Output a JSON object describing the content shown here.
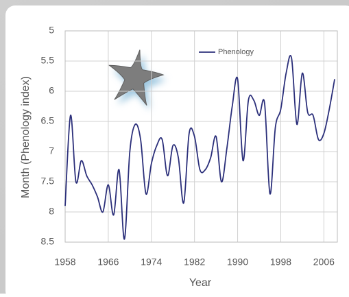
{
  "chart_data": {
    "type": "line",
    "y_label": "Month (Phenology index)",
    "x_label": "Year",
    "x": [
      1958,
      1959,
      1960,
      1961,
      1962,
      1963,
      1964,
      1965,
      1966,
      1967,
      1968,
      1969,
      1970,
      1971,
      1972,
      1973,
      1974,
      1975,
      1976,
      1977,
      1978,
      1979,
      1980,
      1981,
      1982,
      1983,
      1984,
      1985,
      1986,
      1987,
      1988,
      1989,
      1990,
      1991,
      1992,
      1993,
      1994,
      1995,
      1996,
      1997,
      1998,
      1999,
      2000,
      2001,
      2002,
      2003,
      2004,
      2005,
      2006,
      2007,
      2008
    ],
    "series": [
      {
        "name": "Phenology",
        "color": "#2b2f7a",
        "values": [
          7.9,
          6.4,
          7.5,
          7.15,
          7.4,
          7.55,
          7.75,
          8.0,
          7.55,
          8.05,
          7.3,
          8.45,
          7.0,
          6.55,
          6.8,
          7.7,
          7.2,
          6.9,
          6.8,
          7.4,
          6.9,
          7.1,
          7.85,
          6.7,
          6.75,
          7.3,
          7.3,
          7.1,
          6.75,
          7.5,
          6.95,
          6.25,
          5.8,
          7.15,
          6.15,
          6.15,
          6.4,
          6.2,
          7.7,
          6.6,
          6.3,
          5.7,
          5.45,
          6.55,
          5.7,
          6.35,
          6.4,
          6.8,
          6.7,
          6.3,
          5.8
        ]
      }
    ],
    "xlim": [
      1958,
      2008.5
    ],
    "xticks": [
      1958,
      1966,
      1974,
      1982,
      1990,
      1998,
      2006
    ],
    "ylim": [
      5,
      8.5
    ],
    "yticks": [
      5,
      5.5,
      6,
      6.5,
      7,
      7.5,
      8,
      8.5
    ],
    "y_inverted": true,
    "grid": true,
    "legend": "top-right"
  }
}
